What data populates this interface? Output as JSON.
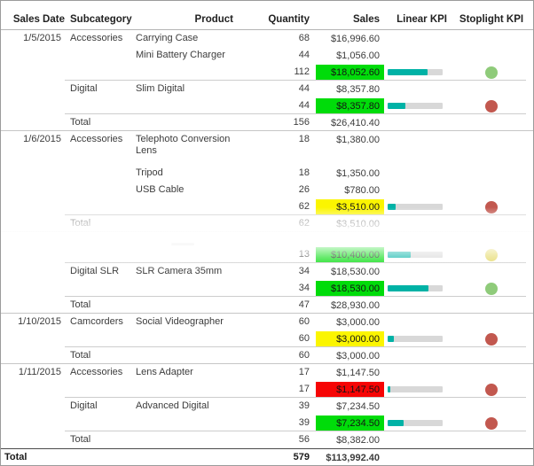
{
  "report": {
    "columns": [
      "Sales Date",
      "Subcategory",
      "Product",
      "Quantity",
      "Sales",
      "Linear KPI",
      "Stoplight KPI"
    ],
    "total_label": "Total"
  },
  "colors": {
    "highlight": {
      "green": "#00DC0A",
      "yellow": "#FBF500",
      "red": "#F60505"
    },
    "stoplight": {
      "green": "#8FCB7A",
      "red": "#C2584F",
      "yellow": "#E3D75F"
    },
    "kpi_fill": "#00B2A6",
    "kpi_track": "#D8D8D8"
  },
  "rows": [
    {
      "type": "detail",
      "date": "1/5/2015",
      "subcategory": "Accessories",
      "product": "Carrying Case",
      "quantity": "68",
      "sales": "$16,996.60"
    },
    {
      "type": "detail",
      "product": "Mini Battery Charger",
      "quantity": "44",
      "sales": "$1,056.00"
    },
    {
      "type": "subtotal",
      "quantity": "112",
      "sales": "$18,052.60",
      "highlight": "green",
      "kpi_pct": 72,
      "stoplight": "green",
      "divider": "partial"
    },
    {
      "type": "detail",
      "subcategory": "Digital",
      "product": "Slim Digital",
      "quantity": "44",
      "sales": "$8,357.80"
    },
    {
      "type": "subtotal",
      "quantity": "44",
      "sales": "$8,357.80",
      "highlight": "green",
      "kpi_pct": 33,
      "stoplight": "red",
      "divider": "partial"
    },
    {
      "type": "total",
      "subcategory": "Total",
      "quantity": "156",
      "sales": "$26,410.40",
      "divider": "full"
    },
    {
      "type": "detail",
      "tall": true,
      "date": "1/6/2015",
      "subcategory": "Accessories",
      "product": "Telephoto Conversion Lens",
      "quantity": "18",
      "sales": "$1,380.00"
    },
    {
      "type": "detail",
      "product": "Tripod",
      "quantity": "18",
      "sales": "$1,350.00"
    },
    {
      "type": "detail",
      "product": "USB Cable",
      "quantity": "26",
      "sales": "$780.00"
    },
    {
      "type": "subtotal",
      "quantity": "62",
      "sales": "$3,510.00",
      "highlight": "yellow",
      "kpi_pct": 14,
      "stoplight": "red",
      "divider": "partial"
    },
    {
      "type": "total",
      "subcategory": "Total",
      "quantity": "62",
      "sales": "$3,510.00",
      "divider": "full"
    },
    {
      "type": "ghost",
      "ghost": true
    },
    {
      "type": "subtotal",
      "quantity": "13",
      "sales": "$10,400.00",
      "highlight": "green",
      "kpi_pct": 42,
      "stoplight": "yellow",
      "divider": "partial"
    },
    {
      "type": "detail",
      "subcategory": "Digital SLR",
      "product": "SLR Camera 35mm",
      "quantity": "34",
      "sales": "$18,530.00"
    },
    {
      "type": "subtotal",
      "quantity": "34",
      "sales": "$18,530.00",
      "highlight": "green",
      "kpi_pct": 74,
      "stoplight": "green",
      "divider": "partial"
    },
    {
      "type": "total",
      "subcategory": "Total",
      "quantity": "47",
      "sales": "$28,930.00",
      "divider": "full"
    },
    {
      "type": "detail",
      "date": "1/10/2015",
      "subcategory": "Camcorders",
      "product": "Social Videographer",
      "quantity": "60",
      "sales": "$3,000.00"
    },
    {
      "type": "subtotal",
      "quantity": "60",
      "sales": "$3,000.00",
      "highlight": "yellow",
      "kpi_pct": 12,
      "stoplight": "red",
      "divider": "partial"
    },
    {
      "type": "total",
      "subcategory": "Total",
      "quantity": "60",
      "sales": "$3,000.00",
      "divider": "full"
    },
    {
      "type": "detail",
      "date": "1/11/2015",
      "subcategory": "Accessories",
      "product": "Lens Adapter",
      "quantity": "17",
      "sales": "$1,147.50"
    },
    {
      "type": "subtotal",
      "quantity": "17",
      "sales": "$1,147.50",
      "highlight": "red",
      "kpi_pct": 5,
      "stoplight": "red",
      "divider": "partial"
    },
    {
      "type": "detail",
      "subcategory": "Digital",
      "product": "Advanced Digital",
      "quantity": "39",
      "sales": "$7,234.50"
    },
    {
      "type": "subtotal",
      "quantity": "39",
      "sales": "$7,234.50",
      "highlight": "green",
      "kpi_pct": 29,
      "stoplight": "red",
      "divider": "partial"
    },
    {
      "type": "total",
      "subcategory": "Total",
      "quantity": "56",
      "sales": "$8,382.00"
    },
    {
      "type": "grand",
      "label": "Total",
      "quantity": "579",
      "sales": "$113,992.40"
    }
  ]
}
